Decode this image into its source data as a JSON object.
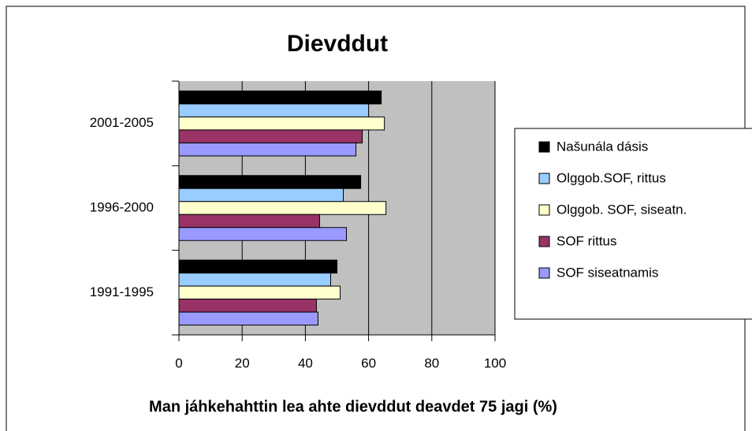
{
  "chart_data": {
    "type": "bar",
    "orientation": "horizontal",
    "title": "Dievddut",
    "x_label": "Man jáhkehahttin lea ahte dievddut deavdet 75 jagi (%)",
    "categories": [
      "1991-1995",
      "1996-2000",
      "2001-2005"
    ],
    "series": [
      {
        "name": "Našunála dásis",
        "color": "#000000",
        "values": [
          50,
          57.5,
          64
        ]
      },
      {
        "name": "Olggob.SOF, rittus",
        "color": "#99ccff",
        "values": [
          48,
          52,
          60
        ]
      },
      {
        "name": "Olggob. SOF, siseatn.",
        "color": "#ffffcc",
        "values": [
          51,
          65.5,
          65
        ]
      },
      {
        "name": "SOF rittus",
        "color": "#993366",
        "values": [
          43.5,
          44.5,
          58
        ]
      },
      {
        "name": "SOF siseatnamis",
        "color": "#9999ff",
        "values": [
          44,
          53,
          56
        ]
      }
    ],
    "xlim": [
      0,
      100
    ],
    "xticks": [
      0,
      20,
      40,
      60,
      80,
      100
    ],
    "grid": true,
    "plot_background": "#c0c0c0",
    "legend": "right"
  }
}
